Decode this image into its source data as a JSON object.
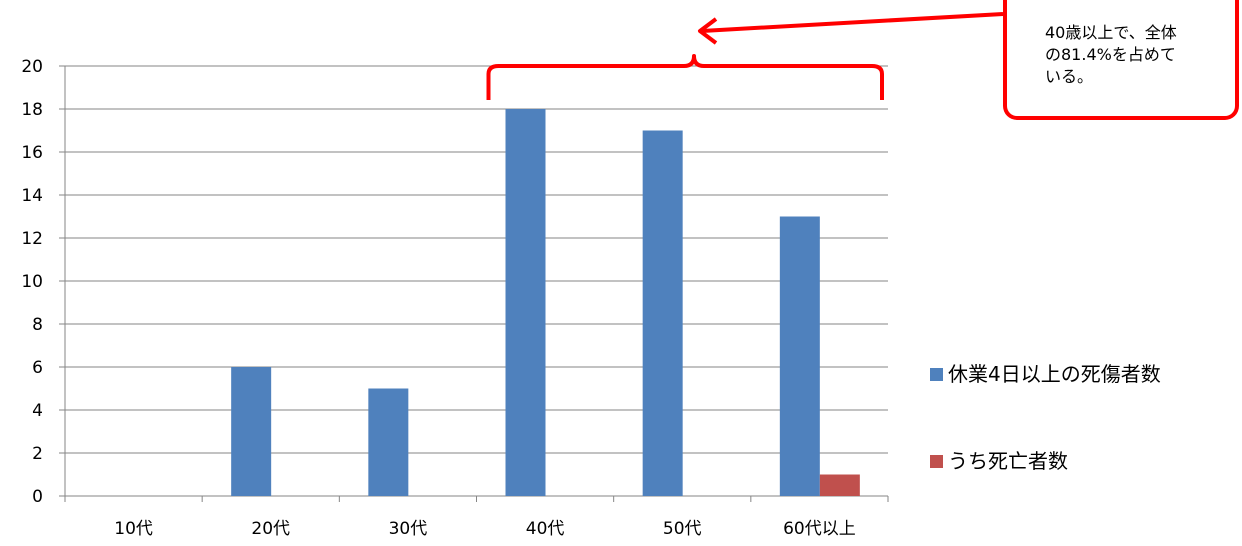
{
  "chart_data": {
    "type": "bar",
    "categories": [
      "10代",
      "20代",
      "30代",
      "40代",
      "50代",
      "60代以上"
    ],
    "series": [
      {
        "name": "休業4日以上の死傷者数",
        "values": [
          0,
          6,
          5,
          18,
          17,
          13
        ],
        "color": "#4f81bd"
      },
      {
        "name": "うち死亡者数",
        "values": [
          0,
          0,
          0,
          0,
          0,
          1
        ],
        "color": "#c0504d"
      }
    ],
    "ylim": [
      0,
      20
    ],
    "yticks": [
      0,
      2,
      4,
      6,
      8,
      10,
      12,
      14,
      16,
      18,
      20
    ],
    "grid": true,
    "legend": "right",
    "annotation": "40歳以上で、全体\nの81.4%を占めて\nいる。",
    "annotation_color": "#ff0000"
  }
}
